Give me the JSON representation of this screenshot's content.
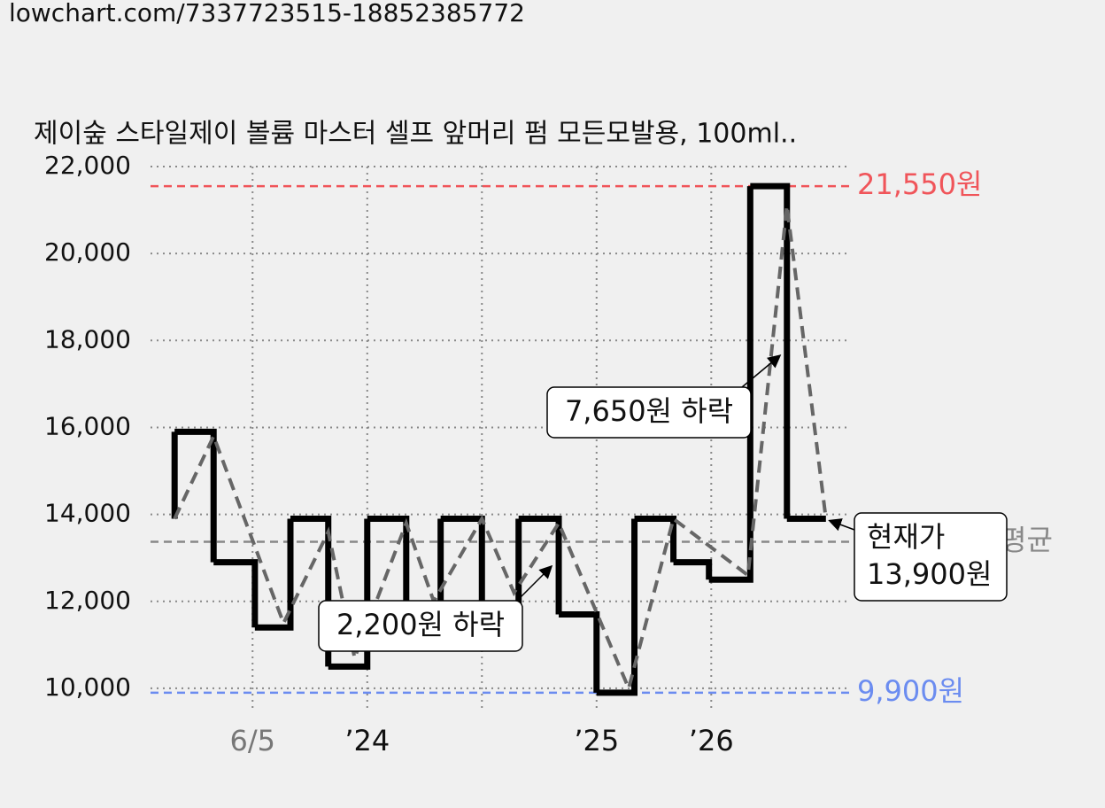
{
  "url": "lowchart.com/7337723515-18852385772",
  "chart_data": {
    "type": "step",
    "title": "제이숲 스타일제이 볼륨 마스터 셀프 앞머리 펌 모든모발용, 100ml..",
    "xlim": [
      0.11,
      6.21
    ],
    "ylim": [
      9530,
      22000
    ],
    "xticks": [
      {
        "value": 1,
        "label": "6/5",
        "color": "#777777"
      },
      {
        "value": 2,
        "label": "’24",
        "color": "#111111"
      },
      {
        "value": 3,
        "label": null,
        "color": "#111111"
      },
      {
        "value": 4,
        "label": "’25",
        "color": "#111111"
      },
      {
        "value": 5,
        "label": "’26",
        "color": "#111111"
      }
    ],
    "yticks": [
      {
        "value": 10000,
        "label": "10,000"
      },
      {
        "value": 12000,
        "label": "12,000"
      },
      {
        "value": 14000,
        "label": "14,000"
      },
      {
        "value": 16000,
        "label": "16,000"
      },
      {
        "value": 18000,
        "label": "18,000"
      },
      {
        "value": 20000,
        "label": "20,000"
      },
      {
        "value": 22000,
        "label": "22,000"
      }
    ],
    "grid": true,
    "series": [
      {
        "style": "step",
        "color": "#000000",
        "x": [
          0.32,
          0.32,
          0.66,
          1.02,
          1.33,
          1.66,
          2.0,
          2.34,
          2.64,
          3.0,
          3.32,
          3.67,
          4.0,
          4.33,
          4.67,
          4.98,
          5.34,
          5.66,
          6.0
        ],
        "values": [
          13900,
          15900,
          12900,
          11400,
          13900,
          10500,
          13900,
          11900,
          13900,
          11900,
          13900,
          11700,
          9900,
          13900,
          12900,
          12500,
          21550,
          13900,
          13900
        ]
      },
      {
        "style": "dashed",
        "color": "#666666",
        "x": [
          0.32,
          0.66,
          1.27,
          1.66,
          1.89,
          2.34,
          2.58,
          3.0,
          3.28,
          3.67,
          4.28,
          4.67,
          5.32,
          5.66,
          6.0
        ],
        "values": [
          13900,
          15800,
          11500,
          13600,
          10700,
          13800,
          12000,
          13900,
          12200,
          13800,
          10000,
          13900,
          12600,
          21100,
          13900
        ]
      }
    ],
    "hlines": [
      {
        "value": 21550,
        "label": "21,550원",
        "color": "#f0555a"
      },
      {
        "value": 9900,
        "label": "9,900원",
        "color": "#6b8cf0"
      },
      {
        "value": 13370,
        "label": "평균",
        "color": "#888888"
      }
    ],
    "annotations": [
      {
        "lines": [
          "7,650원 하락"
        ]
      },
      {
        "lines": [
          "2,200원 하락"
        ]
      },
      {
        "lines": [
          "현재가",
          "13,900원"
        ]
      }
    ]
  }
}
